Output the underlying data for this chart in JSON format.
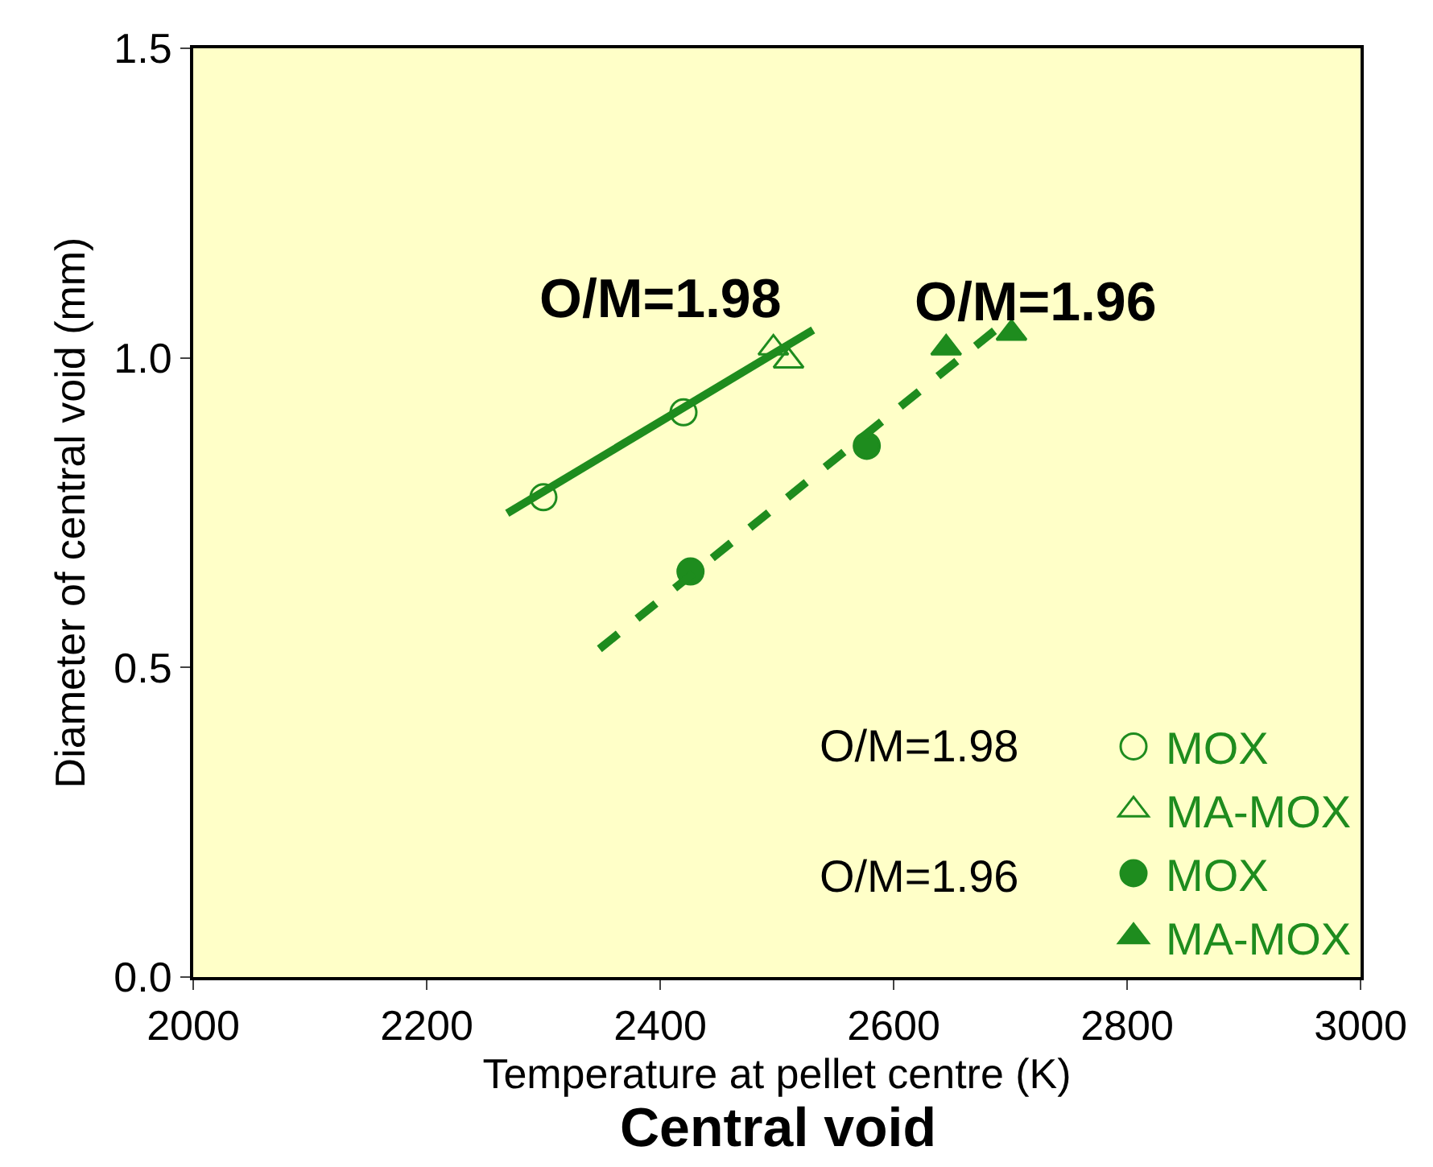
{
  "chart_data": {
    "type": "scatter",
    "title": "Central void",
    "xlabel": "Temperature at pellet centre (K)",
    "ylabel": "Diameter of central void (mm)",
    "series": [
      {
        "name": "MOX",
        "color": "#1e8c1e",
        "marker": "circle-open",
        "x": [
          2300,
          2420
        ],
        "values": [
          0.775,
          0.912
        ]
      },
      {
        "name": "MA-MOX",
        "color": "#1e8c1e",
        "marker": "triangle-open",
        "x": [
          2497,
          2510
        ],
        "values": [
          1.016,
          0.995
        ]
      },
      {
        "name": "MOX",
        "color": "#1e8c1e",
        "marker": "circle",
        "x": [
          2426,
          2577
        ],
        "values": [
          0.655,
          0.858
        ]
      },
      {
        "name": "MA-MOX",
        "color": "#1e8c1e",
        "marker": "triangle",
        "x": [
          2645,
          2701
        ],
        "values": [
          1.016,
          1.04
        ]
      },
      {
        "type": "line",
        "color": "#1e8c1e",
        "marker": "none",
        "line_style": "solid",
        "x": [
          2269,
          2531
        ],
        "values": [
          0.749,
          1.045
        ]
      },
      {
        "type": "line",
        "color": "#1e8c1e",
        "marker": "none",
        "line_style": "dashed",
        "x": [
          2348,
          2701
        ],
        "values": [
          0.53,
          1.066
        ]
      }
    ],
    "annotations": [
      "O/M=1.98",
      "O/M=1.96",
      "O/M=1.98",
      "O/M=1.96"
    ],
    "xlim": [
      2000,
      3000
    ],
    "xticks": [
      2000,
      2200,
      2400,
      2600,
      2800,
      3000
    ],
    "ylim": [
      0,
      1.5
    ],
    "yticks": [
      {
        "value": 0,
        "label": "0.0"
      },
      0.5,
      {
        "value": 1,
        "label": "1.0"
      },
      1.5
    ],
    "grid": false,
    "legend": "bottom right"
  }
}
